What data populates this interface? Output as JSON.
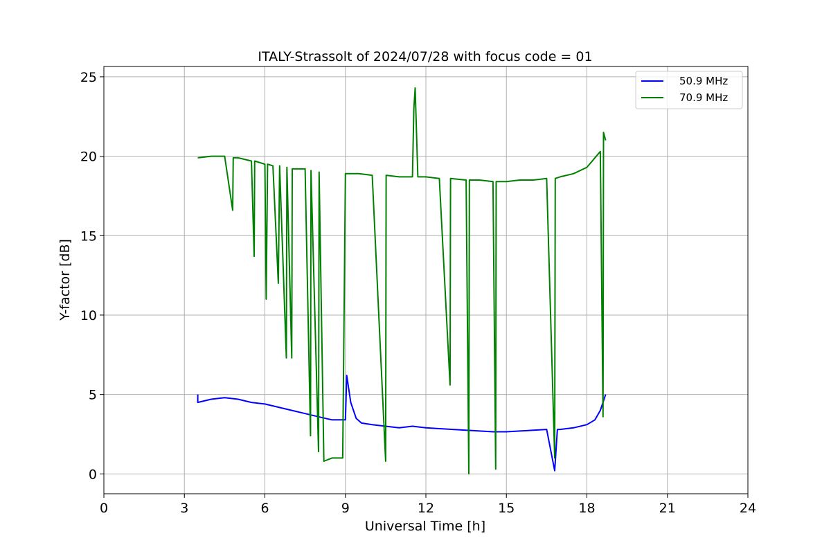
{
  "chart_data": {
    "type": "line",
    "title": "ITALY-Strassolt of 2024/07/28 with focus code = 01",
    "xlabel": "Universal Time [h]",
    "ylabel": "Y-factor [dB]",
    "xlim": [
      0,
      24
    ],
    "ylim": [
      -1.25,
      25.65
    ],
    "xticks": [
      "0",
      "3",
      "6",
      "9",
      "12",
      "15",
      "18",
      "21",
      "24"
    ],
    "yticks": [
      "0",
      "5",
      "10",
      "15",
      "20",
      "25"
    ],
    "grid": true,
    "legend_position": "top-right",
    "series": [
      {
        "name": "50.9 MHz",
        "color": "#0000ff",
        "points": [
          [
            3.5,
            5.0
          ],
          [
            3.5,
            4.5
          ],
          [
            4.0,
            4.7
          ],
          [
            4.5,
            4.8
          ],
          [
            5.0,
            4.7
          ],
          [
            5.5,
            4.5
          ],
          [
            6.0,
            4.4
          ],
          [
            6.5,
            4.2
          ],
          [
            7.0,
            4.0
          ],
          [
            7.5,
            3.8
          ],
          [
            8.0,
            3.6
          ],
          [
            8.5,
            3.4
          ],
          [
            9.0,
            3.4
          ],
          [
            9.05,
            6.2
          ],
          [
            9.2,
            4.5
          ],
          [
            9.4,
            3.5
          ],
          [
            9.6,
            3.2
          ],
          [
            10.0,
            3.1
          ],
          [
            10.5,
            3.0
          ],
          [
            11.0,
            2.9
          ],
          [
            11.5,
            3.0
          ],
          [
            12.0,
            2.9
          ],
          [
            12.5,
            2.85
          ],
          [
            13.0,
            2.8
          ],
          [
            13.5,
            2.75
          ],
          [
            14.0,
            2.7
          ],
          [
            14.5,
            2.65
          ],
          [
            15.0,
            2.65
          ],
          [
            15.5,
            2.7
          ],
          [
            16.0,
            2.75
          ],
          [
            16.5,
            2.8
          ],
          [
            16.8,
            0.2
          ],
          [
            16.9,
            2.8
          ],
          [
            17.0,
            2.8
          ],
          [
            17.5,
            2.9
          ],
          [
            18.0,
            3.1
          ],
          [
            18.3,
            3.4
          ],
          [
            18.5,
            4.0
          ],
          [
            18.7,
            5.0
          ]
        ]
      },
      {
        "name": "70.9 MHz",
        "color": "#008000",
        "points": [
          [
            3.5,
            19.9
          ],
          [
            4.0,
            20.0
          ],
          [
            4.5,
            20.0
          ],
          [
            4.8,
            16.6
          ],
          [
            4.82,
            19.9
          ],
          [
            5.0,
            19.9
          ],
          [
            5.5,
            19.7
          ],
          [
            5.6,
            13.7
          ],
          [
            5.62,
            19.7
          ],
          [
            6.0,
            19.5
          ],
          [
            6.05,
            11.0
          ],
          [
            6.1,
            19.5
          ],
          [
            6.3,
            19.4
          ],
          [
            6.5,
            12.0
          ],
          [
            6.55,
            19.4
          ],
          [
            6.8,
            7.3
          ],
          [
            6.82,
            19.3
          ],
          [
            7.0,
            7.3
          ],
          [
            7.02,
            19.2
          ],
          [
            7.5,
            19.2
          ],
          [
            7.7,
            2.4
          ],
          [
            7.72,
            19.1
          ],
          [
            8.0,
            1.4
          ],
          [
            8.02,
            19.0
          ],
          [
            8.2,
            0.8
          ],
          [
            8.5,
            1.0
          ],
          [
            8.9,
            1.0
          ],
          [
            9.0,
            18.9
          ],
          [
            9.5,
            18.9
          ],
          [
            10.0,
            18.8
          ],
          [
            10.5,
            0.8
          ],
          [
            10.52,
            18.8
          ],
          [
            11.0,
            18.7
          ],
          [
            11.5,
            18.7
          ],
          [
            11.55,
            23.0
          ],
          [
            11.6,
            24.3
          ],
          [
            11.7,
            18.7
          ],
          [
            12.0,
            18.7
          ],
          [
            12.5,
            18.6
          ],
          [
            12.9,
            5.6
          ],
          [
            12.92,
            18.6
          ],
          [
            13.5,
            18.5
          ],
          [
            13.6,
            0.0
          ],
          [
            13.62,
            18.5
          ],
          [
            14.0,
            18.5
          ],
          [
            14.5,
            18.4
          ],
          [
            14.6,
            0.3
          ],
          [
            14.62,
            18.4
          ],
          [
            15.0,
            18.4
          ],
          [
            15.5,
            18.5
          ],
          [
            16.0,
            18.5
          ],
          [
            16.5,
            18.6
          ],
          [
            16.8,
            1.0
          ],
          [
            16.82,
            18.6
          ],
          [
            17.0,
            18.7
          ],
          [
            17.5,
            18.9
          ],
          [
            18.0,
            19.3
          ],
          [
            18.5,
            20.3
          ],
          [
            18.6,
            3.6
          ],
          [
            18.62,
            21.5
          ],
          [
            18.7,
            21.0
          ]
        ]
      }
    ]
  },
  "colors": {
    "grid": "#b0b0b0",
    "axis": "#000000",
    "blue_series": "#0000ff",
    "green_series": "#008000"
  }
}
